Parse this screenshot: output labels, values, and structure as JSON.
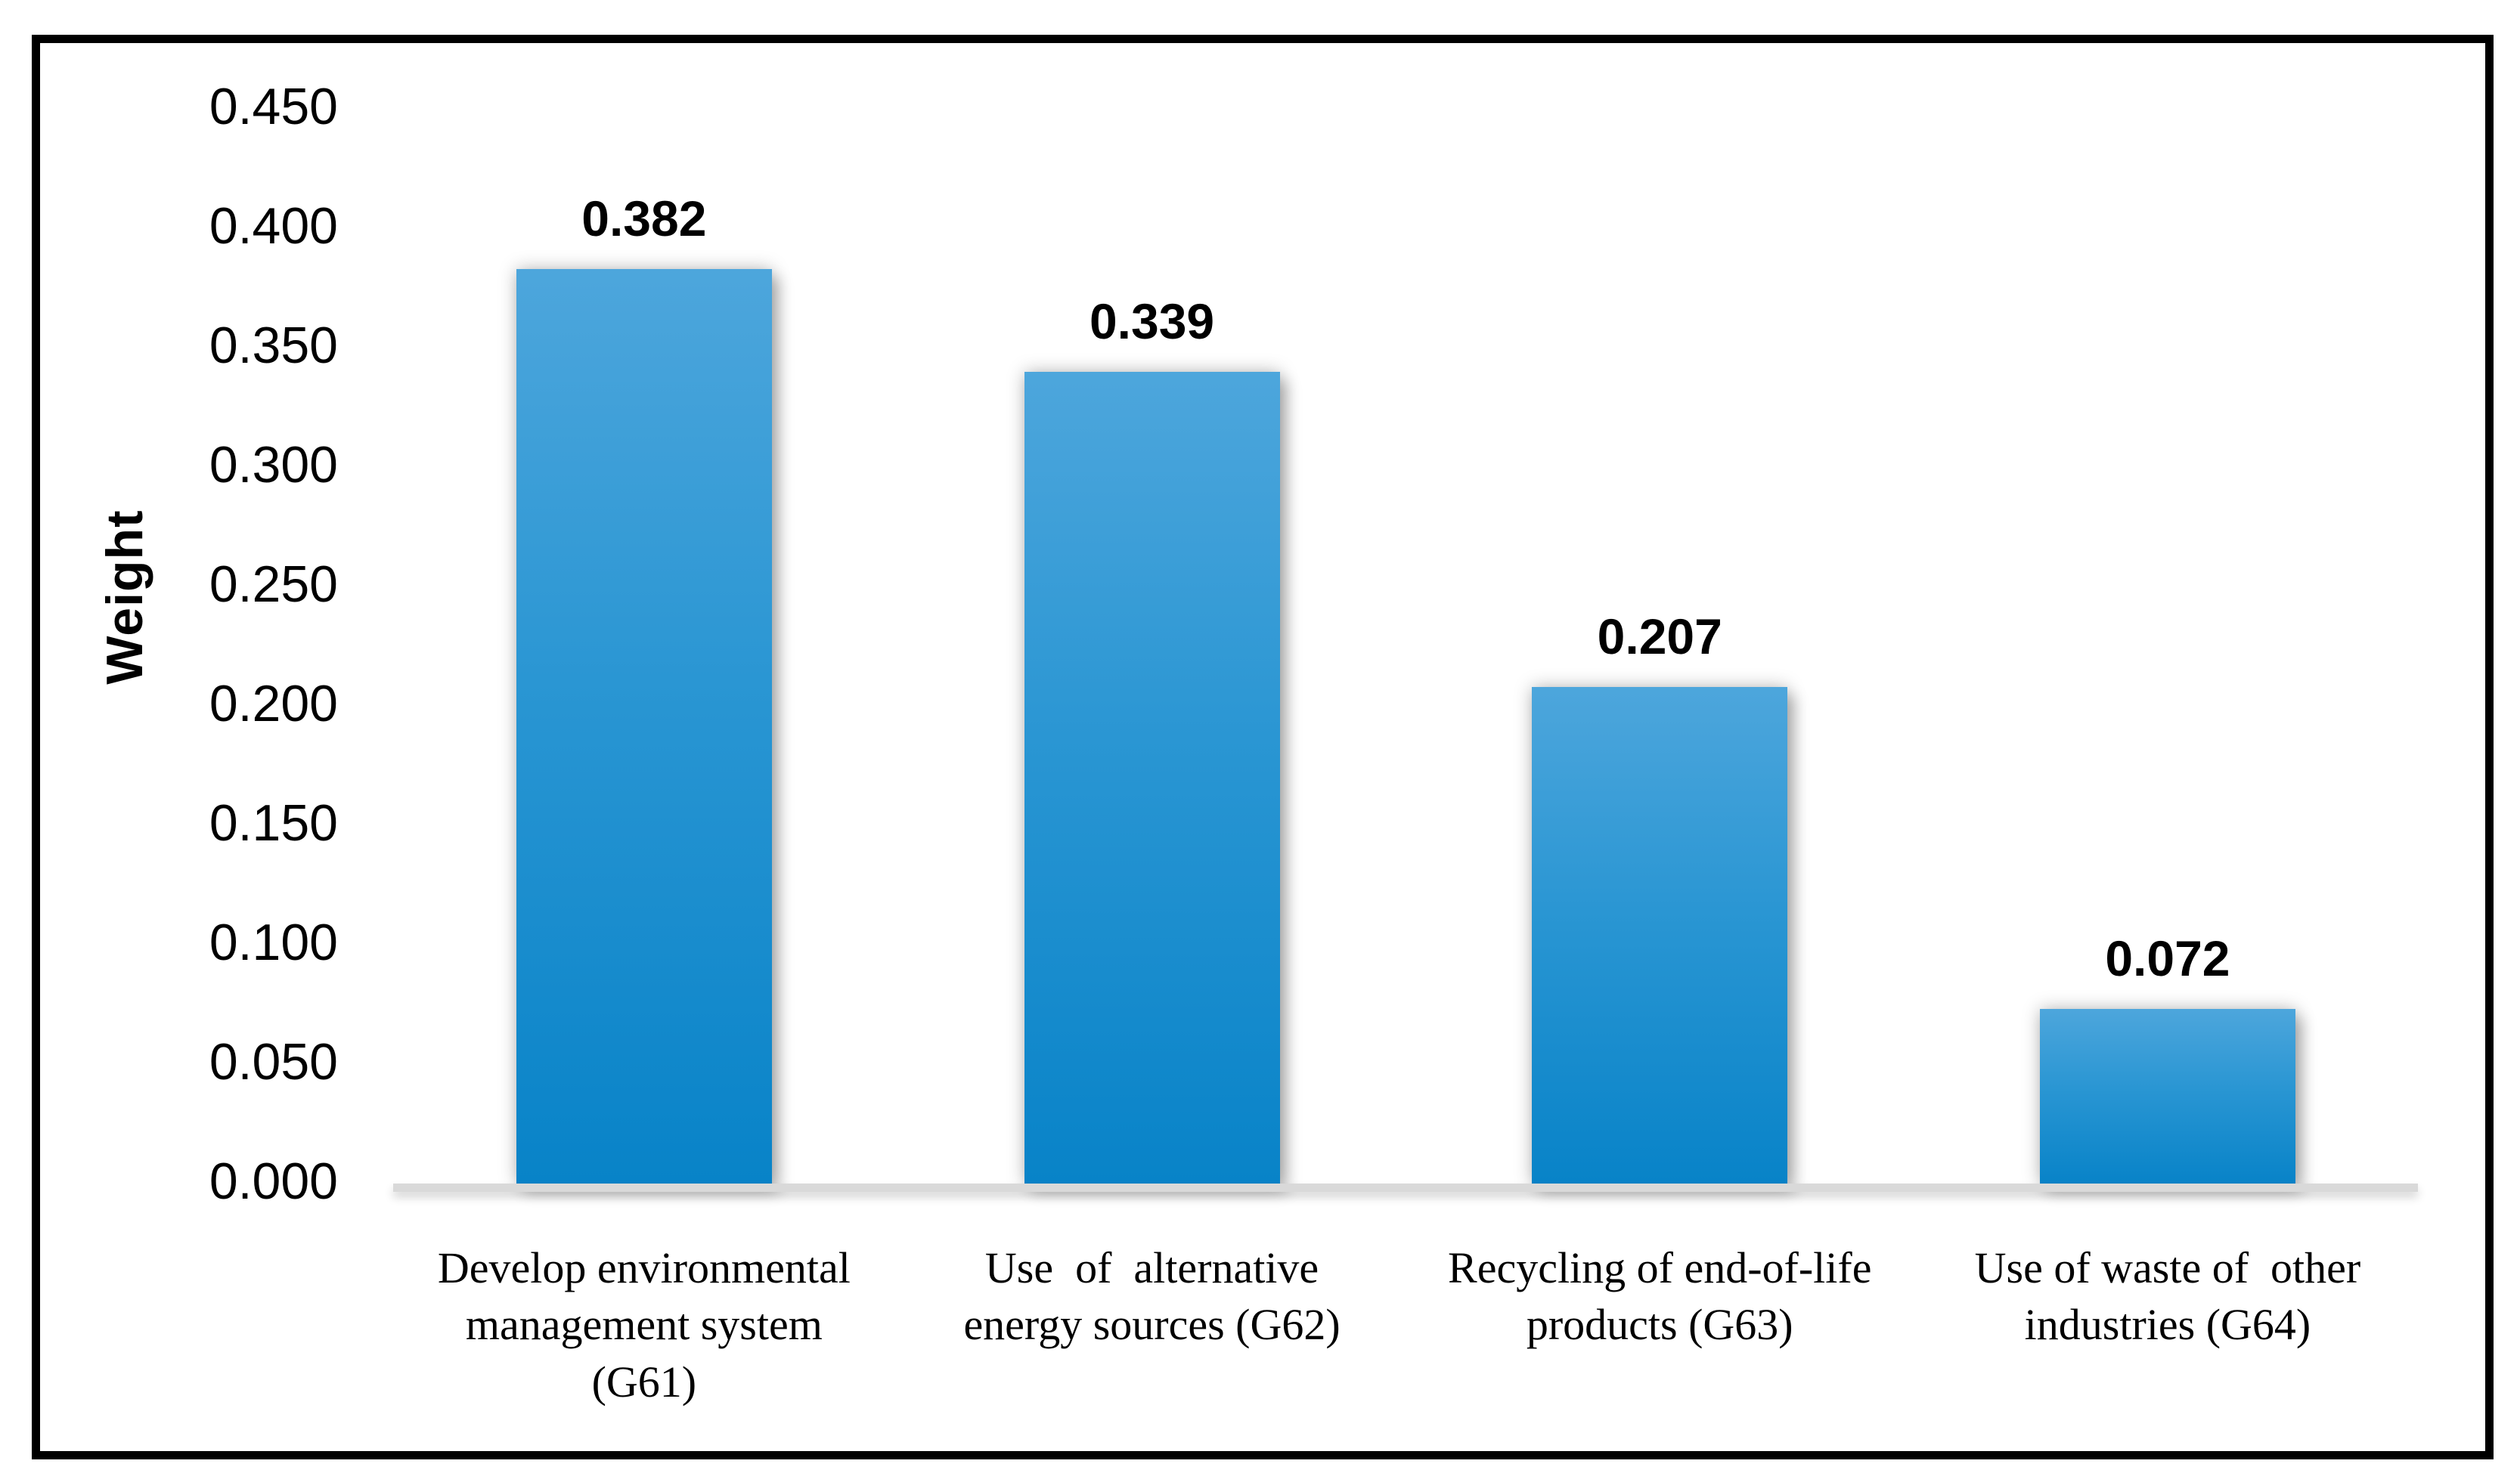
{
  "figure": {
    "border_color": "#000000",
    "background_color": "#ffffff"
  },
  "y_axis": {
    "title": "Weight",
    "tick_labels": [
      "0.450",
      "0.400",
      "0.350",
      "0.300",
      "0.250",
      "0.200",
      "0.150",
      "0.100",
      "0.050",
      "0.000"
    ]
  },
  "chart_data": {
    "type": "bar",
    "title": "",
    "xlabel": "",
    "ylabel": "Weight",
    "ylim": [
      0,
      0.45
    ],
    "ytick_step": 0.05,
    "grid": false,
    "legend": "none",
    "categories": [
      "Develop environmental\nmanagement system\n(G61)",
      "Use  of  alternative\nenergy sources (G62)",
      "Recycling of end-of-life\nproducts (G63)",
      "Use of waste of  other\nindustries (G64)"
    ],
    "values": [
      0.382,
      0.339,
      0.207,
      0.072
    ],
    "data_labels": [
      "0.382",
      "0.339",
      "0.207",
      "0.072"
    ],
    "bar_color_top": "#4da6dc",
    "bar_color_bottom": "#0883c8",
    "axis_line_color": "#d9d9d9",
    "data_label_color": "#000000",
    "tick_label_color": "#000000"
  }
}
